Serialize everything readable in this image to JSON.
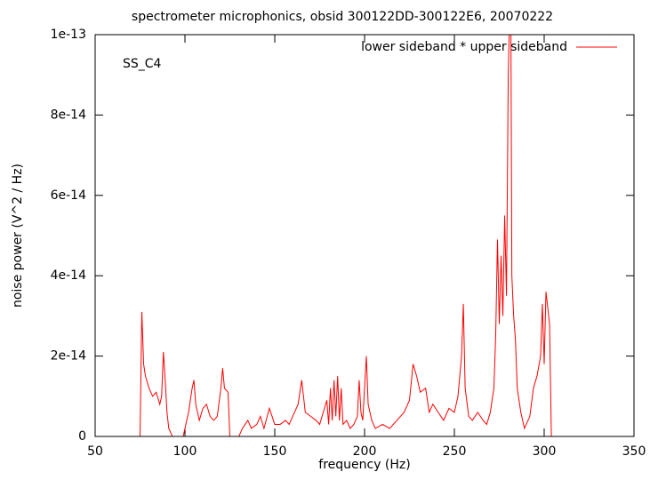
{
  "chart_data": {
    "type": "line",
    "title": "spectrometer microphonics, obsid 300122DD-300122E6, 20070222",
    "xlabel": "frequency (Hz)",
    "ylabel": "noise power (V^2 / Hz)",
    "annotation": "SS_C4",
    "legend": "top-right",
    "xlim": [
      50,
      350
    ],
    "xticks": [
      50,
      100,
      150,
      200,
      250,
      300,
      350
    ],
    "ylim": [
      0,
      1e-13
    ],
    "yticks": [
      0,
      2e-14,
      4e-14,
      6e-14,
      8e-14,
      1e-13
    ],
    "x": [
      50,
      75,
      76,
      77,
      78,
      80,
      82,
      84,
      86,
      87,
      88,
      89,
      90,
      91,
      92,
      93,
      99,
      100,
      102,
      104,
      105,
      106,
      108,
      110,
      112,
      114,
      116,
      118,
      120,
      121,
      122,
      124,
      125,
      130,
      132,
      135,
      137,
      140,
      142,
      144,
      147,
      150,
      153,
      156,
      158,
      160,
      163,
      165,
      167,
      170,
      173,
      175,
      177,
      179,
      180,
      181,
      182,
      183,
      184,
      185,
      186,
      187,
      188,
      190,
      192,
      194,
      196,
      197,
      198,
      199,
      200,
      201,
      202,
      204,
      206,
      210,
      214,
      218,
      222,
      225,
      227,
      229,
      231,
      234,
      236,
      238,
      241,
      244,
      247,
      250,
      252,
      254,
      255,
      256,
      258,
      260,
      263,
      266,
      268,
      270,
      272,
      273,
      274,
      275,
      276,
      277,
      278,
      279,
      280,
      280.5,
      281.5,
      282,
      283,
      284,
      285,
      287,
      289,
      290,
      292,
      294,
      296,
      298,
      299,
      300,
      301,
      302,
      303,
      304,
      350
    ],
    "series": [
      {
        "name": "lower sideband * upper sideband",
        "color": "#ff0000",
        "values": [
          0,
          0,
          3.1e-14,
          1.8e-14,
          1.5e-14,
          1.2e-14,
          1e-14,
          1.1e-14,
          8e-15,
          1e-14,
          2.1e-14,
          1.4e-14,
          6e-15,
          2e-15,
          1e-15,
          0,
          0,
          2e-15,
          6e-15,
          1.2e-14,
          1.4e-14,
          8e-15,
          4e-15,
          7e-15,
          8e-15,
          5e-15,
          4e-15,
          5e-15,
          1.2e-14,
          1.7e-14,
          1.2e-14,
          1.1e-14,
          0,
          0,
          2e-15,
          4e-15,
          2e-15,
          3e-15,
          5e-15,
          2e-15,
          7e-15,
          3e-15,
          3e-15,
          4e-15,
          3e-15,
          5e-15,
          8e-15,
          1.4e-14,
          6e-15,
          5e-15,
          4e-15,
          3e-15,
          6e-15,
          9e-15,
          3e-15,
          1.2e-14,
          4e-15,
          1.4e-14,
          5e-15,
          1.5e-14,
          4e-15,
          1.2e-14,
          3e-15,
          4e-15,
          2e-15,
          3e-15,
          5e-15,
          1.4e-14,
          6e-15,
          4e-15,
          1.2e-14,
          2e-14,
          8e-15,
          4e-15,
          2e-15,
          3e-15,
          2e-15,
          4e-15,
          6e-15,
          9e-15,
          1.8e-14,
          1.5e-14,
          1.1e-14,
          1.2e-14,
          6e-15,
          8e-15,
          6e-15,
          4e-15,
          7e-15,
          6e-15,
          1e-14,
          2e-14,
          3.3e-14,
          1.2e-14,
          5e-15,
          4e-15,
          6e-15,
          4e-15,
          3e-15,
          6e-15,
          1.2e-14,
          2.5e-14,
          4.9e-14,
          2.8e-14,
          4.5e-14,
          3e-14,
          5.5e-14,
          3.5e-14,
          9e-14,
          1e-13,
          1e-13,
          4e-14,
          3e-14,
          2.4e-14,
          1.2e-14,
          6e-15,
          2e-15,
          3e-15,
          5e-15,
          1.2e-14,
          1.5e-14,
          2e-14,
          3.3e-14,
          1.8e-14,
          3.6e-14,
          3.2e-14,
          2.8e-14,
          0,
          0
        ]
      }
    ]
  }
}
